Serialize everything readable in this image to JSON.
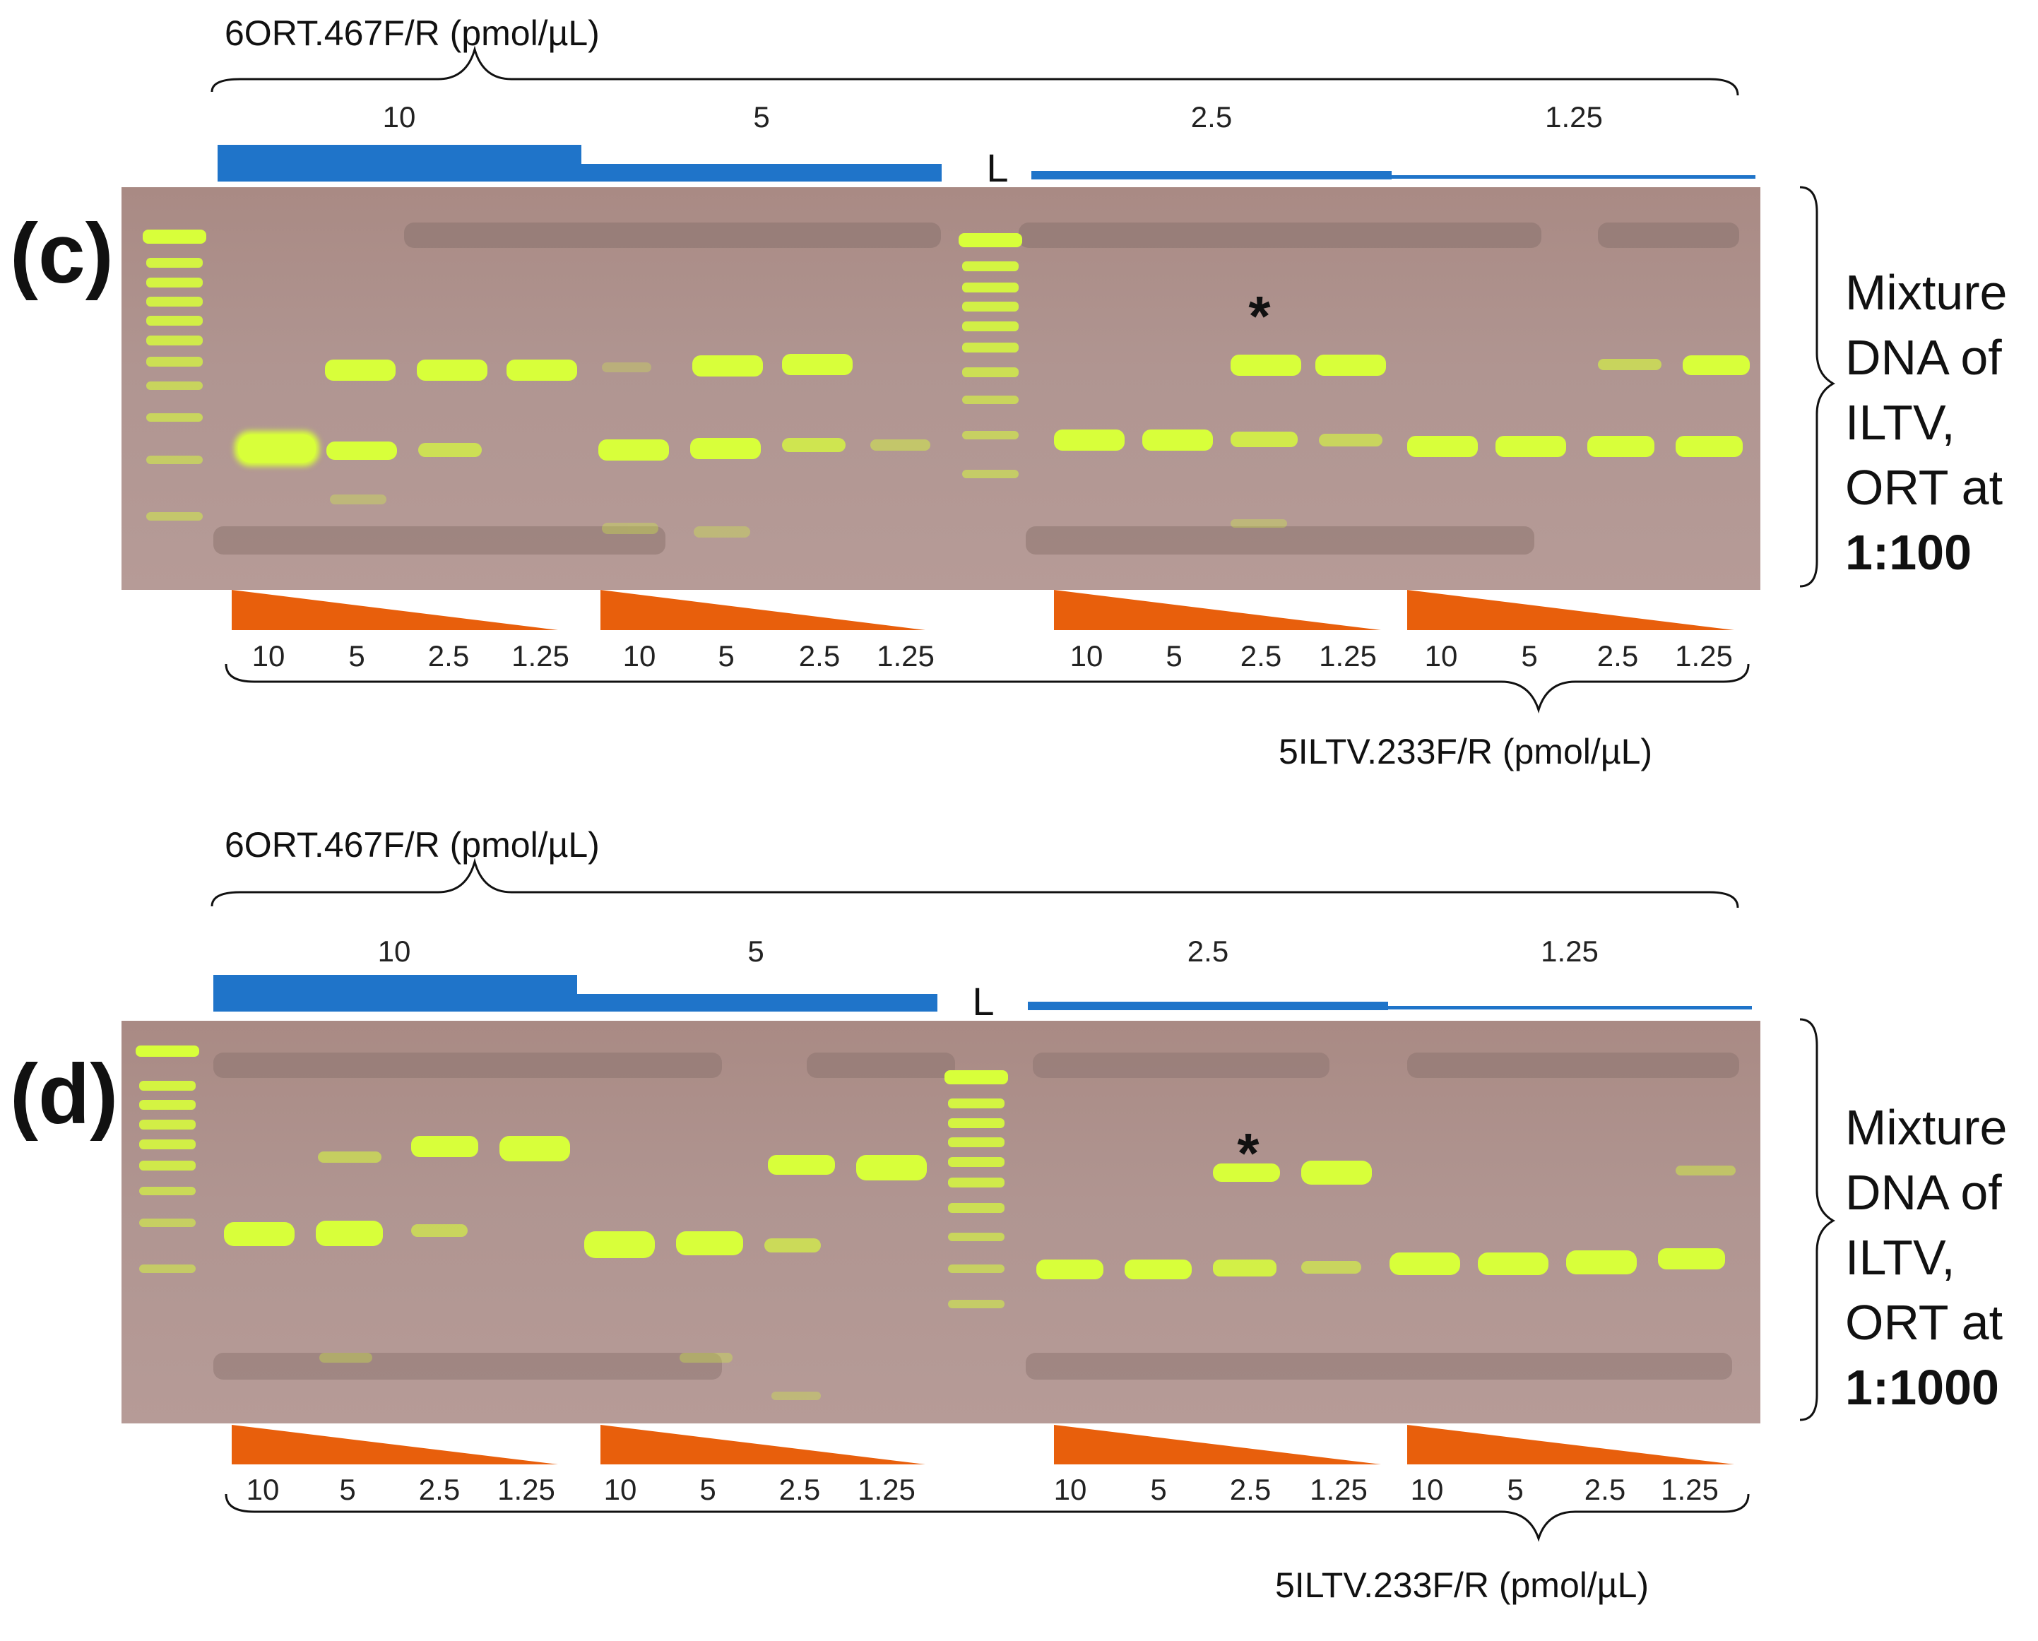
{
  "panels": [
    {
      "label": "(c)",
      "ort_primer_label": "6ORT.467F/R (pmol/µL)",
      "iltv_primer_label": "5ILTV.233F/R (pmol/µL)",
      "ort_concentrations": [
        "10",
        "5",
        "2.5",
        "1.25"
      ],
      "iltv_concentrations": [
        "10",
        "5",
        "2.5",
        "1.25",
        "10",
        "5",
        "2.5",
        "1.25",
        "10",
        "5",
        "2.5",
        "1.25",
        "10",
        "5",
        "2.5",
        "1.25"
      ],
      "ladder_label": "L",
      "asterisk": "*",
      "side_line1": "Mixture",
      "side_line2": "DNA of",
      "side_line3": "ILTV,",
      "side_line4": "ORT at",
      "side_ratio": "1:100"
    },
    {
      "label": "(d)",
      "ort_primer_label": "6ORT.467F/R (pmol/µL)",
      "iltv_primer_label": "5ILTV.233F/R (pmol/µL)",
      "ort_concentrations": [
        "10",
        "5",
        "2.5",
        "1.25"
      ],
      "iltv_concentrations": [
        "10",
        "5",
        "2.5",
        "1.25",
        "10",
        "5",
        "2.5",
        "1.25",
        "10",
        "5",
        "2.5",
        "1.25",
        "10",
        "5",
        "2.5",
        "1.25"
      ],
      "ladder_label": "L",
      "asterisk": "*",
      "side_line1": "Mixture",
      "side_line2": "DNA of",
      "side_line3": "ILTV,",
      "side_line4": "ORT at",
      "side_ratio": "1:1000"
    }
  ],
  "colors": {
    "ort_bar": "#1f74c9",
    "iltv_wedge": "#e85f0c",
    "band": "#d8ff3a",
    "gel": "#b09591"
  }
}
